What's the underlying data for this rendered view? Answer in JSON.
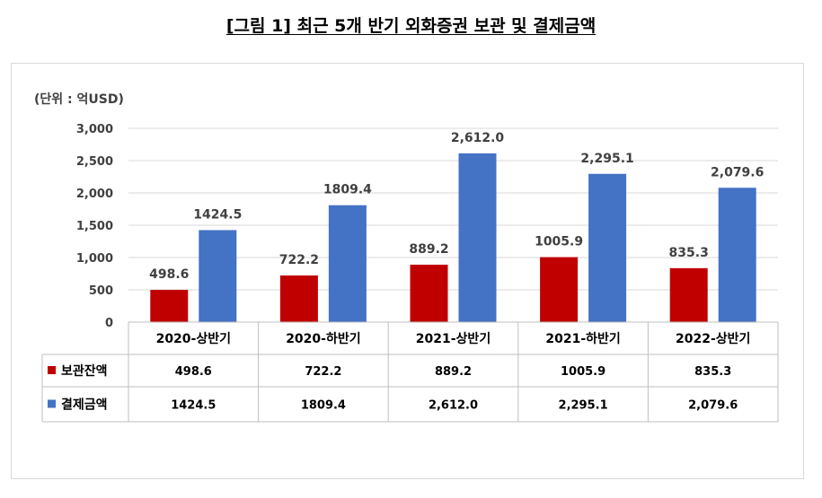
{
  "figure": {
    "title": "[그림 1] 최근 5개 반기 외화증권 보관 및 결제금액",
    "unit_label": "(단위 : 억USD)"
  },
  "chart_data": {
    "type": "bar",
    "categories": [
      "2020-상반기",
      "2020-하반기",
      "2021-상반기",
      "2021-하반기",
      "2022-상반기"
    ],
    "series": [
      {
        "name": "보관잔액",
        "values": [
          498.6,
          722.2,
          889.2,
          1005.9,
          835.3
        ],
        "labels": [
          "498.6",
          "722.2",
          "889.2",
          "1005.9",
          "835.3"
        ],
        "color": "#c00000"
      },
      {
        "name": "결제금액",
        "values": [
          1424.5,
          1809.4,
          2612.0,
          2295.1,
          2079.6
        ],
        "labels": [
          "1424.5",
          "1809.4",
          "2,612.0",
          "2,295.1",
          "2,079.6"
        ],
        "color": "#4472c4"
      }
    ],
    "ylim": [
      0,
      3000
    ],
    "yticks": [
      "0",
      "500",
      "1,000",
      "1,500",
      "2,000",
      "2,500",
      "3,000"
    ],
    "grid": true,
    "legend": "data-table-left"
  }
}
